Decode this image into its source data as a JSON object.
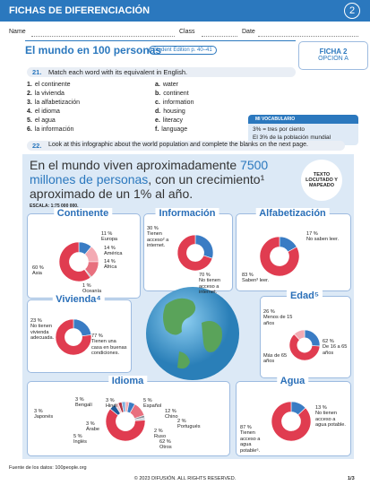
{
  "header": {
    "title": "FICHAS DE DIFERENCIACIÓN",
    "number": "2"
  },
  "fields": [
    "Name",
    "Class",
    "Date"
  ],
  "lesson": {
    "title": "El mundo en 100 personas",
    "reference": "Student Edition p. 40–41",
    "tag": "FICHA 2",
    "option": "OPCIÓN A"
  },
  "exercise_21": {
    "number": "21.",
    "instruction": "Match each word with its equivalent in English.",
    "spanish": [
      {
        "marker": "1.",
        "word": "el continente"
      },
      {
        "marker": "2.",
        "word": "la vivienda"
      },
      {
        "marker": "3.",
        "word": "la alfabetización"
      },
      {
        "marker": "4.",
        "word": "el idioma"
      },
      {
        "marker": "5.",
        "word": "el agua"
      },
      {
        "marker": "6.",
        "word": "la información"
      }
    ],
    "english": [
      {
        "marker": "a.",
        "word": "water"
      },
      {
        "marker": "b.",
        "word": "continent"
      },
      {
        "marker": "c.",
        "word": "information"
      },
      {
        "marker": "d.",
        "word": "housing"
      },
      {
        "marker": "e.",
        "word": "literacy"
      },
      {
        "marker": "f.",
        "word": "language"
      }
    ]
  },
  "vocabulary": {
    "title": "MI VOCABULARIO",
    "lines": [
      "3% = tres por ciento",
      "El 3% de la población mundial"
    ]
  },
  "exercise_22": {
    "number": "22.",
    "instruction": "Look at this infographic about the world population and complete the blanks on the next page."
  },
  "infographic": {
    "heading": [
      "En el mundo viven aproximadamente",
      "7500 millones de personas",
      ", con un",
      "crecimiento¹ aproximado de un 1% al año."
    ],
    "badge": "TEXTO LOCUTADO Y MAPEADO",
    "scale": "ESCALA: 1:75 000 000.",
    "panels": [
      {
        "title": "Continente",
        "segments": [
          {
            "value": 11,
            "value_label": "11 %",
            "text": "Europa",
            "color": "#3a7cc4"
          },
          {
            "value": 14,
            "value_label": "14 %",
            "text": "América",
            "color": "#f3aab3"
          },
          {
            "value": 14,
            "value_label": "14 %",
            "text": "África",
            "color": "#e8707e"
          },
          {
            "value": 1,
            "value_label": "1 %",
            "text": "Oceanía",
            "color": "#8a8f99"
          },
          {
            "value": 60,
            "value_label": "60 %",
            "text": "Asia",
            "color": "#e03c50"
          }
        ]
      },
      {
        "title": "Información",
        "segments": [
          {
            "value": 30,
            "value_label": "30 %",
            "text": "Tienen acceso² a internet.",
            "color": "#3a7cc4"
          },
          {
            "value": 70,
            "value_label": "70 %",
            "text": "No tienen acceso a internet.",
            "color": "#e03c50"
          }
        ]
      },
      {
        "title": "Alfabetización",
        "segments": [
          {
            "value": 17,
            "value_label": "17 %",
            "text": "No saben leer.",
            "color": "#3a7cc4"
          },
          {
            "value": 83,
            "value_label": "83 %",
            "text": "Saben³ leer.",
            "color": "#e03c50"
          }
        ]
      },
      {
        "title": "Vivienda⁴",
        "segments": [
          {
            "value": 23,
            "value_label": "23 %",
            "text": "No tienen vivienda adecuada.",
            "color": "#3a7cc4"
          },
          {
            "value": 77,
            "value_label": "77 %",
            "text": "Tienen una casa en buenas condiciones.",
            "color": "#e03c50"
          }
        ]
      },
      {
        "title": "Edad⁵",
        "segments": [
          {
            "value": 26,
            "value_label": "26 %",
            "text": "Menos de 15 años",
            "color": "#3a7cc4"
          },
          {
            "value": 62,
            "value_label": "62 %",
            "text": "De 16 a 65 años",
            "color": "#e03c50"
          },
          {
            "value": 12,
            "value_label": null,
            "text": "Más de 65 años",
            "color": "#f3aab3"
          }
        ]
      },
      {
        "title": "Idioma",
        "segments": [
          {
            "value": 3,
            "value_label": "3 %",
            "text": "Hindi",
            "color": "#f3aab3"
          },
          {
            "value": 5,
            "value_label": "5 %",
            "text": "Español",
            "color": "#3a7cc4"
          },
          {
            "value": 12,
            "value_label": "12 %",
            "text": "Chino",
            "color": "#e8707e"
          },
          {
            "value": 2,
            "value_label": "2 %",
            "text": "Portugués",
            "color": "#8a8f99"
          },
          {
            "value": 2,
            "value_label": "2 %",
            "text": "Ruso",
            "color": "#c7cbd3"
          },
          {
            "value": 62,
            "value_label": "62 %",
            "text": "Otros",
            "color": "#e03c50"
          },
          {
            "value": 5,
            "value_label": "5 %",
            "text": "Inglés",
            "color": "#1f5c99"
          },
          {
            "value": 3,
            "value_label": "3 %",
            "text": "Árabe",
            "color": "#f7c9cf"
          },
          {
            "value": 3,
            "value_label": "3 %",
            "text": "Japonés",
            "color": "#b03040"
          },
          {
            "value": 3,
            "value_label": "3 %",
            "text": "Bengalí",
            "color": "#7fb0de"
          }
        ]
      },
      {
        "title": "Agua",
        "segments": [
          {
            "value": 13,
            "value_label": "13 %",
            "text": "No tienen acceso a agua potable.",
            "color": "#3a7cc4"
          },
          {
            "value": 87,
            "value_label": "87 %",
            "text": "Tienen acceso a agua potable⁶.",
            "color": "#e03c50"
          }
        ]
      }
    ]
  },
  "footer": {
    "source": "Fuente de los datos: 100people.org",
    "copyright": "© 2023 DIFUSIÓN. ALL RIGHTS RESERVED.",
    "page": "1/3"
  }
}
